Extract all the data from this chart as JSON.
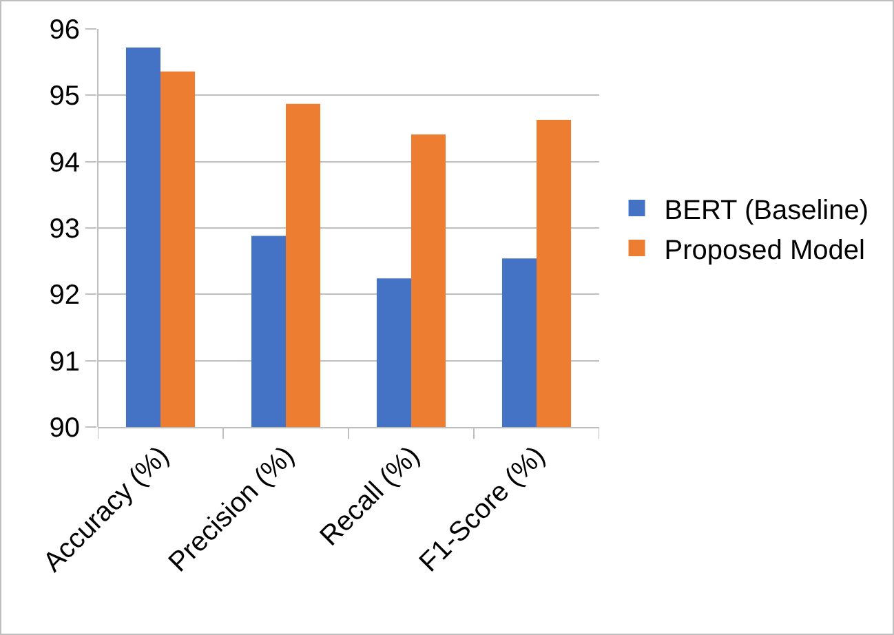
{
  "chart_data": {
    "type": "bar",
    "categories": [
      "Accuracy (%)",
      "Precision (%)",
      "Recall (%)",
      "F1-Score (%)"
    ],
    "series": [
      {
        "name": "BERT (Baseline)",
        "color": "#4472c4",
        "values": [
          95.72,
          92.88,
          92.24,
          92.54
        ]
      },
      {
        "name": "Proposed Model",
        "color": "#ed7d31",
        "values": [
          95.36,
          94.87,
          94.41,
          94.63
        ]
      }
    ],
    "ylim": [
      90,
      96
    ],
    "yticks": [
      90,
      91,
      92,
      93,
      94,
      95,
      96
    ],
    "grid": "y",
    "legend": "right"
  }
}
